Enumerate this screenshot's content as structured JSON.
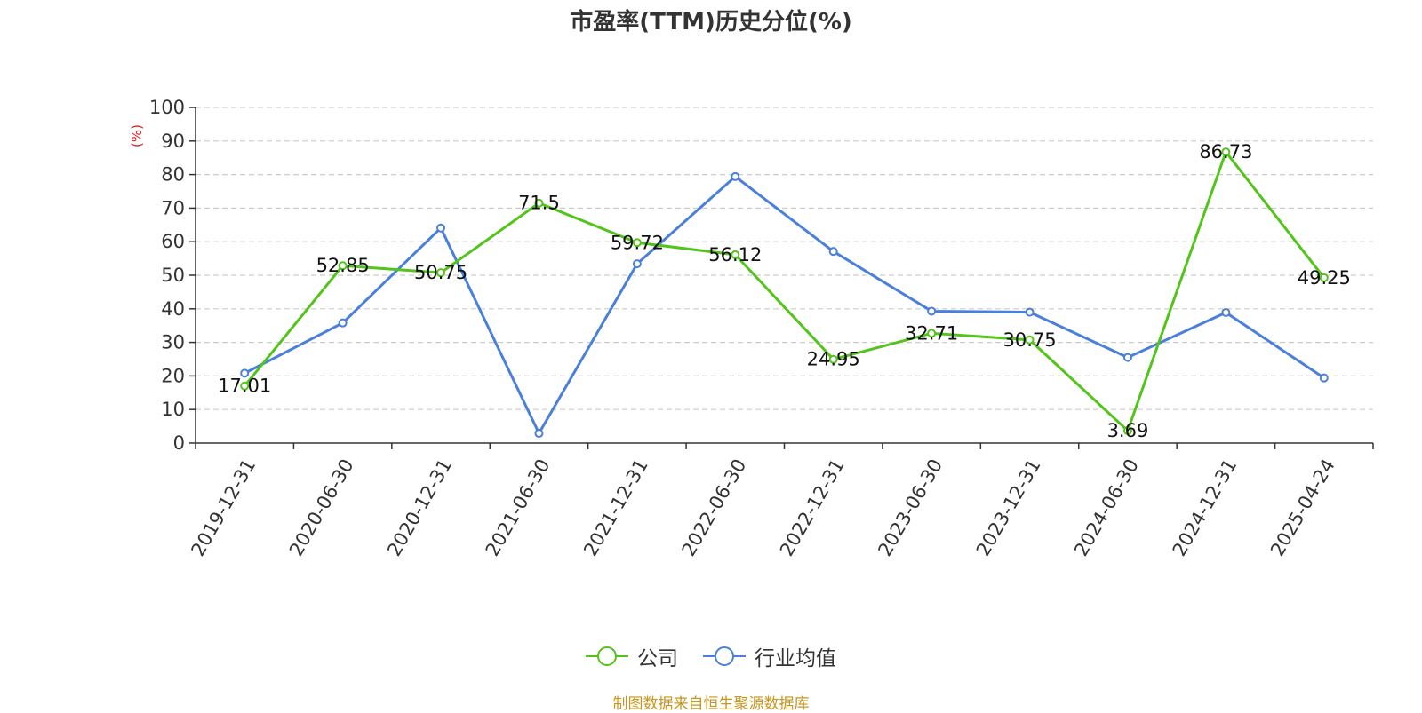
{
  "chart_data": {
    "type": "line",
    "title": "市盈率(TTM)历史分位(%)",
    "ylabel": "(%)",
    "xlabel": "",
    "ylim": [
      0,
      100
    ],
    "yticks": [
      0,
      10,
      20,
      30,
      40,
      50,
      60,
      70,
      80,
      90,
      100
    ],
    "grid": true,
    "legend_position": "bottom",
    "categories": [
      "2019-12-31",
      "2020-06-30",
      "2020-12-31",
      "2021-06-30",
      "2021-12-31",
      "2022-06-30",
      "2022-12-31",
      "2023-06-30",
      "2023-12-31",
      "2024-06-30",
      "2024-12-31",
      "2025-04-24"
    ],
    "series": [
      {
        "name": "公司",
        "color": "#52c41a",
        "values": [
          17.01,
          52.85,
          50.75,
          71.5,
          59.72,
          56.12,
          24.95,
          32.71,
          30.75,
          3.69,
          86.73,
          49.25
        ],
        "labels": [
          "17.01",
          "52.85",
          "50.75",
          "71.5",
          "59.72",
          "56.12",
          "24.95",
          "32.71",
          "30.75",
          "3.69",
          "86.73",
          "49.25"
        ]
      },
      {
        "name": "行业均值",
        "color": "#4a7fdc",
        "values": [
          20.8,
          35.8,
          64.1,
          2.9,
          53.4,
          79.4,
          57.1,
          39.3,
          39.0,
          25.5,
          38.9,
          19.4
        ]
      }
    ]
  },
  "footer": {
    "text": "制图数据来自恒生聚源数据库",
    "color": "#c8961e"
  },
  "colors": {
    "axis": "#333333",
    "grid": "#cccccc",
    "ylabel": "#e02020"
  }
}
